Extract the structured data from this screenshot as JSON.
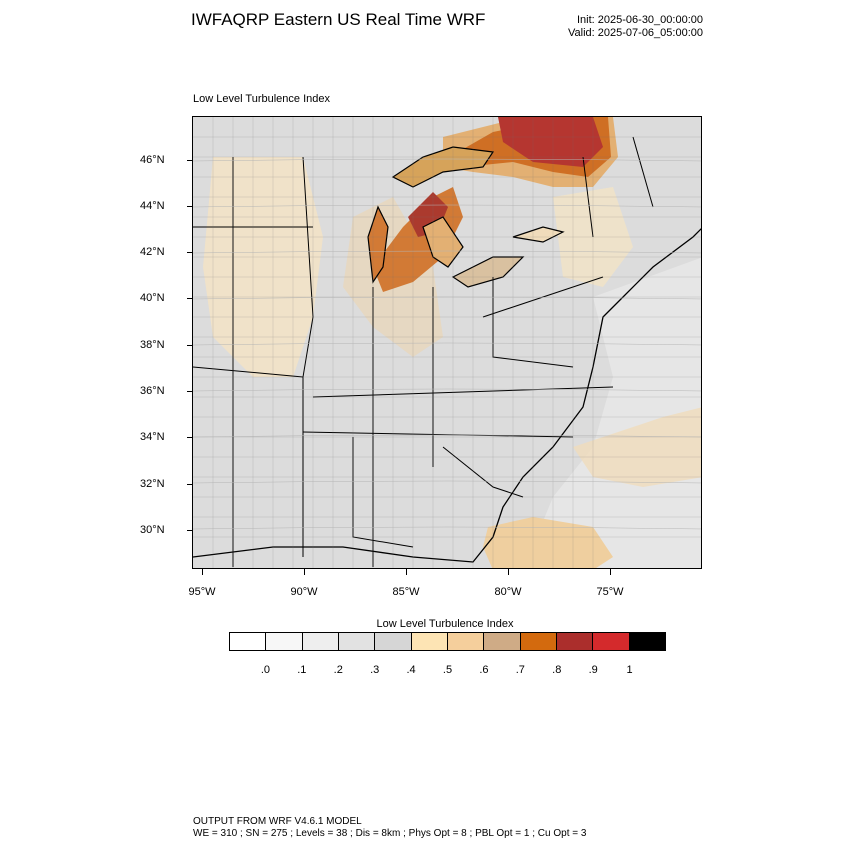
{
  "title": "IWFAQRP Eastern US Real Time WRF",
  "init": "Init: 2025-06-30_00:00:00",
  "valid": "Valid: 2025-07-06_05:00:00",
  "subtitle": "Low Level Turbulence Index",
  "lat_labels": [
    "46°N",
    "44°N",
    "42°N",
    "40°N",
    "38°N",
    "36°N",
    "34°N",
    "32°N",
    "30°N"
  ],
  "lon_labels": [
    "95°W",
    "90°W",
    "85°W",
    "80°W",
    "75°W"
  ],
  "colorbar": {
    "title": "Low Level Turbulence Index",
    "labels": [
      ".0",
      ".1",
      ".2",
      ".3",
      ".4",
      ".5",
      ".6",
      ".7",
      ".8",
      ".9",
      "1"
    ],
    "colors": [
      "#ffffff",
      "#f7f7f7",
      "#eeeeee",
      "#e2e2e2",
      "#d6d6d6",
      "#fde4b4",
      "#f5cf9c",
      "#cfab86",
      "#d36a0e",
      "#ab2e2c",
      "#d42a2c",
      "#000000"
    ]
  },
  "footer_line1": "OUTPUT FROM WRF V4.6.1 MODEL",
  "footer_line2": "WE = 310 ; SN = 275 ; Levels = 38 ; Dis = 8km ; Phys Opt = 8 ; PBL Opt = 1 ; Cu Opt = 3"
}
